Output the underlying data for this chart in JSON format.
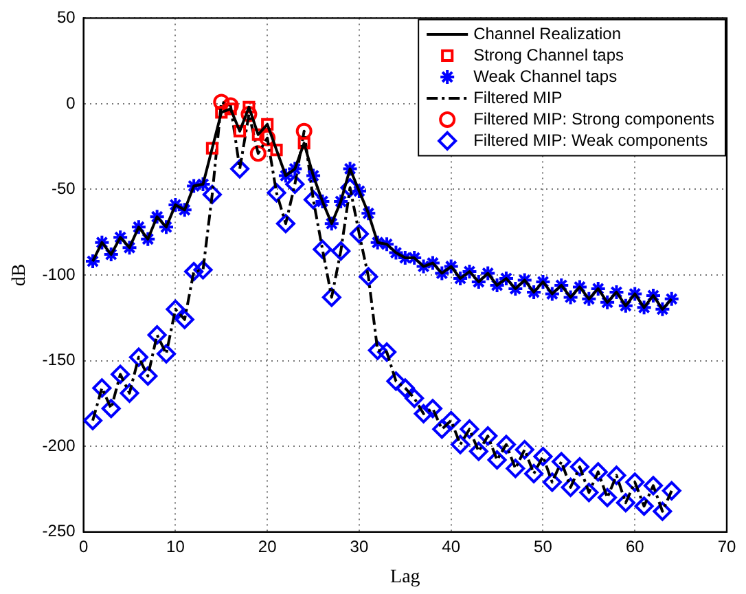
{
  "chart_data": {
    "type": "line",
    "xlabel": "Lag",
    "ylabel": "dB",
    "xlim": [
      0,
      70
    ],
    "xticks": [
      0,
      10,
      20,
      30,
      40,
      50,
      60,
      70
    ],
    "ylim": [
      -250,
      50
    ],
    "yticks": [
      -250,
      -200,
      -150,
      -100,
      -50,
      0,
      50
    ],
    "grid": true,
    "legend": "top right",
    "series": [
      {
        "name": "Channel Realization",
        "type": "line",
        "color": "#000000",
        "line_style": "solid",
        "marker": "none",
        "x": [
          1,
          2,
          3,
          4,
          5,
          6,
          7,
          8,
          9,
          10,
          11,
          12,
          13,
          14,
          15,
          16,
          17,
          18,
          19,
          20,
          21,
          22,
          23,
          24,
          25,
          26,
          27,
          28,
          29,
          30,
          31,
          32,
          33,
          34,
          35,
          36,
          37,
          38,
          39,
          40,
          41,
          42,
          43,
          44,
          45,
          46,
          47,
          48,
          49,
          50,
          51,
          52,
          53,
          54,
          55,
          56,
          57,
          58,
          59,
          60,
          61,
          62,
          63,
          64
        ],
        "values": [
          -92,
          -81,
          -88,
          -78,
          -84,
          -72,
          -79,
          -66,
          -72,
          -59,
          -62,
          -48,
          -47,
          -26,
          -5,
          -3,
          -16,
          -2,
          -18,
          -12,
          -27,
          -42,
          -38,
          -23,
          -42,
          -57,
          -70,
          -57,
          -38,
          -51,
          -64,
          -81,
          -82,
          -87,
          -90,
          -90,
          -95,
          -93,
          -99,
          -95,
          -102,
          -98,
          -104,
          -99,
          -106,
          -102,
          -108,
          -103,
          -110,
          -104,
          -111,
          -106,
          -113,
          -107,
          -114,
          -108,
          -116,
          -110,
          -118,
          -111,
          -119,
          -112,
          -120,
          -114
        ]
      },
      {
        "name": "Strong Channel taps",
        "type": "scatter",
        "color": "#ff0000",
        "marker": "square",
        "x": [
          14,
          15,
          16,
          17,
          18,
          19,
          20,
          21,
          24
        ],
        "values": [
          -26,
          -5,
          -3,
          -16,
          -2,
          -18,
          -12,
          -27,
          -23
        ]
      },
      {
        "name": "Weak Channel taps",
        "type": "scatter",
        "color": "#0000ff",
        "marker": "cross",
        "x": [
          1,
          2,
          3,
          4,
          5,
          6,
          7,
          8,
          9,
          10,
          11,
          12,
          13,
          22,
          23,
          25,
          26,
          27,
          28,
          29,
          30,
          31,
          32,
          33,
          34,
          35,
          36,
          37,
          38,
          39,
          40,
          41,
          42,
          43,
          44,
          45,
          46,
          47,
          48,
          49,
          50,
          51,
          52,
          53,
          54,
          55,
          56,
          57,
          58,
          59,
          60,
          61,
          62,
          63,
          64
        ],
        "values": [
          -92,
          -81,
          -88,
          -78,
          -84,
          -72,
          -79,
          -66,
          -72,
          -59,
          -62,
          -48,
          -47,
          -42,
          -38,
          -42,
          -57,
          -70,
          -57,
          -38,
          -51,
          -64,
          -81,
          -82,
          -87,
          -90,
          -90,
          -95,
          -93,
          -99,
          -95,
          -102,
          -98,
          -104,
          -99,
          -106,
          -102,
          -108,
          -103,
          -110,
          -104,
          -111,
          -106,
          -113,
          -107,
          -114,
          -108,
          -116,
          -110,
          -118,
          -111,
          -119,
          -112,
          -120,
          -114
        ]
      },
      {
        "name": "Filtered MIP",
        "type": "line",
        "color": "#000000",
        "line_style": "dashed",
        "marker": "none",
        "x": [
          1,
          2,
          3,
          4,
          5,
          6,
          7,
          8,
          9,
          10,
          11,
          12,
          13,
          14,
          15,
          16,
          17,
          18,
          19,
          20,
          21,
          22,
          23,
          24,
          25,
          26,
          27,
          28,
          29,
          30,
          31,
          32,
          33,
          34,
          35,
          36,
          37,
          38,
          39,
          40,
          41,
          42,
          43,
          44,
          45,
          46,
          47,
          48,
          49,
          50,
          51,
          52,
          53,
          54,
          55,
          56,
          57,
          58,
          59,
          60,
          61,
          62,
          63,
          64
        ],
        "values": [
          -185,
          -166,
          -178,
          -158,
          -169,
          -148,
          -159,
          -135,
          -146,
          -120,
          -126,
          -98,
          -97,
          -53,
          1,
          -1,
          -38,
          -6,
          -29,
          -20,
          -52,
          -70,
          -47,
          -16,
          -56,
          -85,
          -113,
          -86,
          -49,
          -76,
          -101,
          -144,
          -145,
          -162,
          -166,
          -172,
          -181,
          -178,
          -190,
          -185,
          -199,
          -190,
          -203,
          -194,
          -208,
          -199,
          -213,
          -202,
          -216,
          -206,
          -221,
          -209,
          -224,
          -212,
          -227,
          -215,
          -230,
          -217,
          -233,
          -221,
          -235,
          -223,
          -238,
          -226
        ]
      },
      {
        "name": "Filtered MIP: Strong components",
        "type": "scatter",
        "color": "#ff0000",
        "marker": "circle",
        "x": [
          15,
          16,
          18,
          19,
          20,
          24
        ],
        "values": [
          1,
          -1,
          -6,
          -29,
          -20,
          -16
        ]
      },
      {
        "name": "Filtered MIP: Weak components",
        "type": "scatter",
        "color": "#0000ff",
        "marker": "diamond",
        "x": [
          1,
          2,
          3,
          4,
          5,
          6,
          7,
          8,
          9,
          10,
          11,
          12,
          13,
          14,
          17,
          21,
          22,
          23,
          25,
          26,
          27,
          28,
          29,
          30,
          31,
          32,
          33,
          34,
          35,
          36,
          37,
          38,
          39,
          40,
          41,
          42,
          43,
          44,
          45,
          46,
          47,
          48,
          49,
          50,
          51,
          52,
          53,
          54,
          55,
          56,
          57,
          58,
          59,
          60,
          61,
          62,
          63,
          64
        ],
        "values": [
          -185,
          -166,
          -178,
          -158,
          -169,
          -148,
          -159,
          -135,
          -146,
          -120,
          -126,
          -98,
          -97,
          -53,
          -38,
          -52,
          -70,
          -47,
          -56,
          -85,
          -113,
          -86,
          -49,
          -76,
          -101,
          -144,
          -145,
          -162,
          -166,
          -172,
          -181,
          -178,
          -190,
          -185,
          -199,
          -190,
          -203,
          -194,
          -208,
          -199,
          -213,
          -202,
          -216,
          -206,
          -221,
          -209,
          -224,
          -212,
          -227,
          -215,
          -230,
          -217,
          -233,
          -221,
          -235,
          -223,
          -238,
          -226
        ]
      }
    ]
  }
}
